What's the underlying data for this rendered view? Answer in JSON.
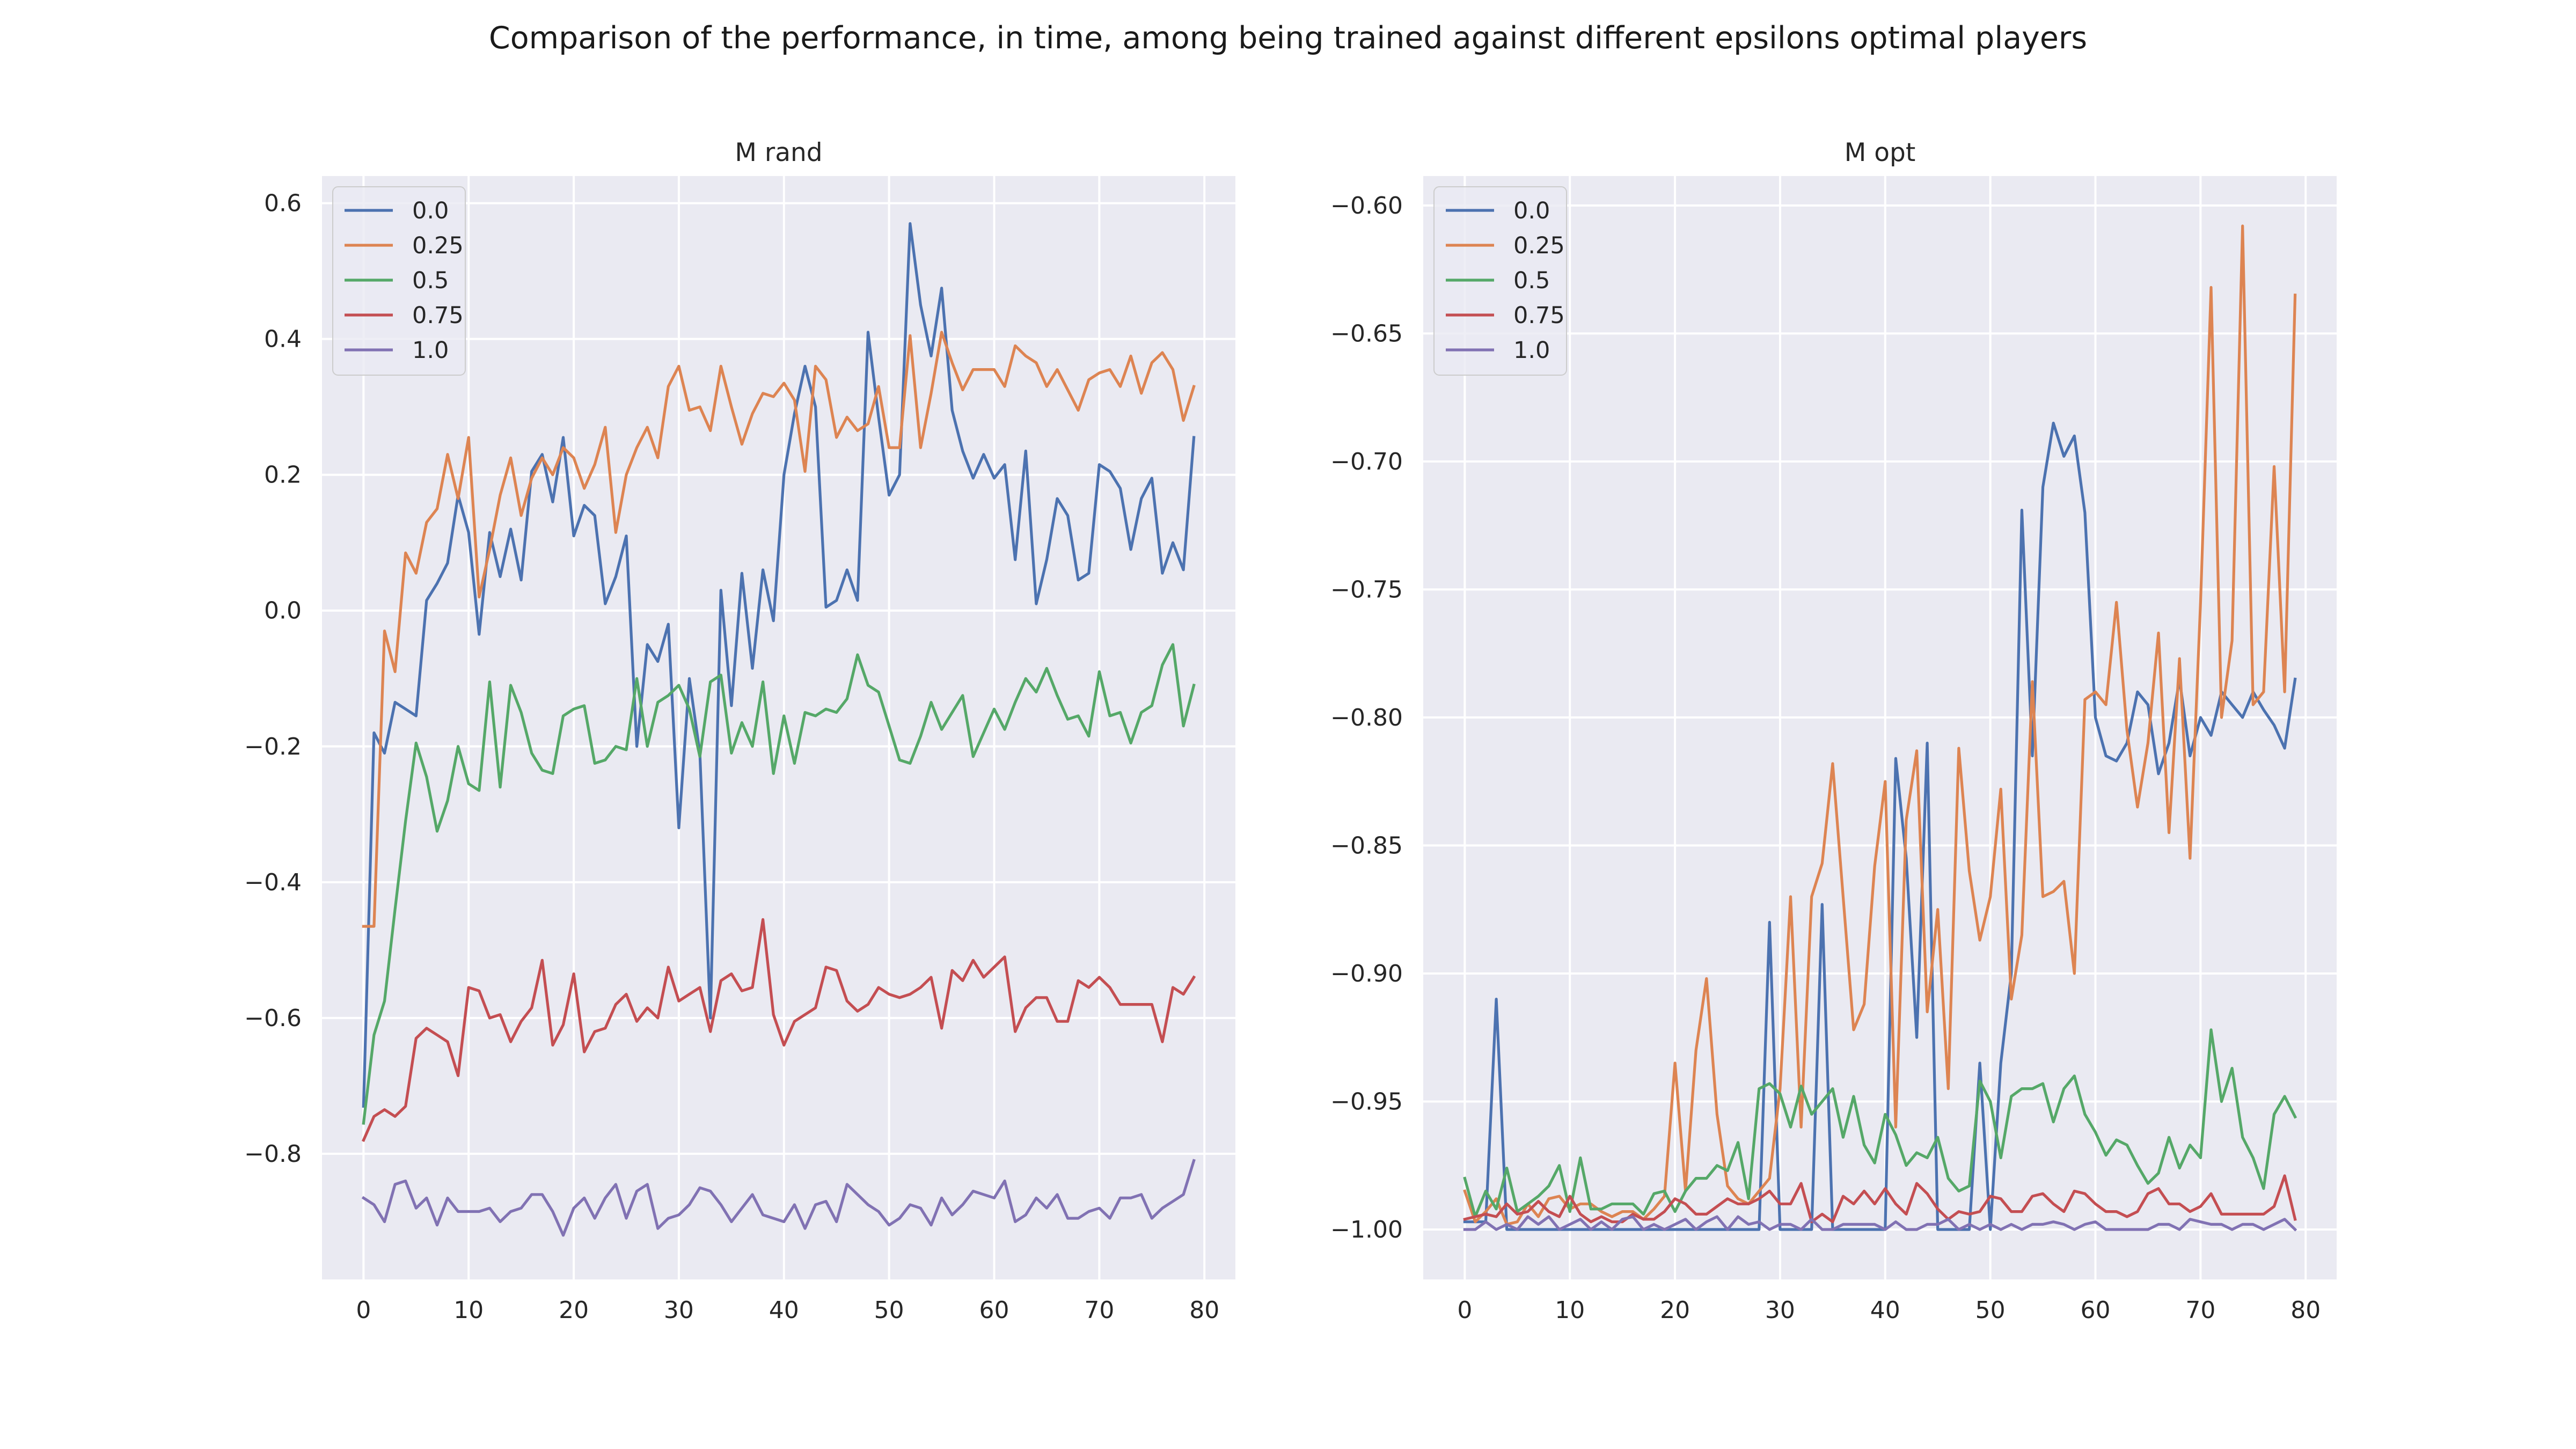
{
  "suptitle": "Comparison of the performance, in time, among being trained against different epsilons optimal players",
  "chart_data": [
    {
      "type": "line",
      "title": "M rand",
      "xlabel": "",
      "ylabel": "",
      "xlim": [
        -3.95,
        82.95
      ],
      "ylim": [
        -0.985,
        0.64
      ],
      "xticks": [
        0,
        10,
        20,
        30,
        40,
        50,
        60,
        70,
        80
      ],
      "yticks": [
        -0.8,
        -0.6,
        -0.4,
        -0.2,
        0.0,
        0.2,
        0.4,
        0.6
      ],
      "ytick_labels": [
        "−0.8",
        "−0.6",
        "−0.4",
        "−0.2",
        "0.0",
        "0.2",
        "0.4",
        "0.6"
      ],
      "grid": true,
      "legend": "top-left",
      "colors": [
        "#4c72b0",
        "#dd8452",
        "#55a868",
        "#c44e52",
        "#8172b3"
      ],
      "series": [
        {
          "name": "0.0",
          "values": [
            -0.73,
            -0.18,
            -0.21,
            -0.135,
            -0.145,
            -0.155,
            0.015,
            0.04,
            0.07,
            0.17,
            0.115,
            -0.035,
            0.115,
            0.05,
            0.12,
            0.045,
            0.205,
            0.23,
            0.16,
            0.255,
            0.11,
            0.155,
            0.14,
            0.01,
            0.05,
            0.11,
            -0.2,
            -0.05,
            -0.075,
            -0.02,
            -0.32,
            -0.1,
            -0.21,
            -0.6,
            0.03,
            -0.14,
            0.055,
            -0.085,
            0.06,
            -0.015,
            0.2,
            0.29,
            0.36,
            0.3,
            0.005,
            0.015,
            0.06,
            0.015,
            0.41,
            0.285,
            0.17,
            0.2,
            0.57,
            0.45,
            0.375,
            0.475,
            0.295,
            0.235,
            0.195,
            0.23,
            0.195,
            0.215,
            0.075,
            0.235,
            0.01,
            0.075,
            0.165,
            0.14,
            0.045,
            0.055,
            0.215,
            0.205,
            0.18,
            0.09,
            0.165,
            0.195,
            0.055,
            0.1,
            0.06,
            0.255
          ]
        },
        {
          "name": "0.25",
          "values": [
            -0.465,
            -0.465,
            -0.03,
            -0.09,
            0.085,
            0.055,
            0.13,
            0.15,
            0.23,
            0.165,
            0.255,
            0.02,
            0.09,
            0.17,
            0.225,
            0.14,
            0.195,
            0.225,
            0.2,
            0.24,
            0.225,
            0.18,
            0.215,
            0.27,
            0.115,
            0.2,
            0.24,
            0.27,
            0.225,
            0.33,
            0.36,
            0.295,
            0.3,
            0.265,
            0.36,
            0.3,
            0.245,
            0.29,
            0.32,
            0.315,
            0.335,
            0.31,
            0.205,
            0.36,
            0.34,
            0.255,
            0.285,
            0.265,
            0.275,
            0.33,
            0.24,
            0.24,
            0.405,
            0.24,
            0.32,
            0.41,
            0.365,
            0.325,
            0.355,
            0.355,
            0.355,
            0.33,
            0.39,
            0.375,
            0.365,
            0.33,
            0.355,
            0.325,
            0.295,
            0.34,
            0.35,
            0.355,
            0.33,
            0.375,
            0.32,
            0.365,
            0.38,
            0.355,
            0.28,
            0.33
          ]
        },
        {
          "name": "0.5",
          "values": [
            -0.755,
            -0.625,
            -0.575,
            -0.44,
            -0.31,
            -0.195,
            -0.245,
            -0.325,
            -0.28,
            -0.2,
            -0.255,
            -0.265,
            -0.105,
            -0.26,
            -0.11,
            -0.15,
            -0.21,
            -0.235,
            -0.24,
            -0.155,
            -0.145,
            -0.14,
            -0.225,
            -0.22,
            -0.2,
            -0.205,
            -0.1,
            -0.2,
            -0.135,
            -0.125,
            -0.11,
            -0.145,
            -0.215,
            -0.105,
            -0.095,
            -0.21,
            -0.165,
            -0.2,
            -0.105,
            -0.24,
            -0.155,
            -0.225,
            -0.15,
            -0.155,
            -0.145,
            -0.15,
            -0.13,
            -0.065,
            -0.11,
            -0.12,
            -0.17,
            -0.22,
            -0.225,
            -0.185,
            -0.135,
            -0.175,
            -0.15,
            -0.125,
            -0.215,
            -0.18,
            -0.145,
            -0.175,
            -0.135,
            -0.1,
            -0.12,
            -0.085,
            -0.125,
            -0.16,
            -0.155,
            -0.185,
            -0.09,
            -0.155,
            -0.15,
            -0.195,
            -0.15,
            -0.14,
            -0.08,
            -0.05,
            -0.17,
            -0.11
          ]
        },
        {
          "name": "0.75",
          "values": [
            -0.78,
            -0.745,
            -0.735,
            -0.745,
            -0.73,
            -0.63,
            -0.615,
            -0.625,
            -0.635,
            -0.685,
            -0.555,
            -0.56,
            -0.6,
            -0.595,
            -0.635,
            -0.605,
            -0.585,
            -0.515,
            -0.64,
            -0.61,
            -0.535,
            -0.65,
            -0.62,
            -0.615,
            -0.58,
            -0.565,
            -0.605,
            -0.585,
            -0.6,
            -0.525,
            -0.575,
            -0.565,
            -0.555,
            -0.62,
            -0.545,
            -0.535,
            -0.56,
            -0.555,
            -0.455,
            -0.595,
            -0.64,
            -0.605,
            -0.595,
            -0.585,
            -0.525,
            -0.53,
            -0.575,
            -0.59,
            -0.58,
            -0.555,
            -0.565,
            -0.57,
            -0.565,
            -0.555,
            -0.54,
            -0.615,
            -0.53,
            -0.545,
            -0.515,
            -0.54,
            -0.525,
            -0.51,
            -0.62,
            -0.585,
            -0.57,
            -0.57,
            -0.605,
            -0.605,
            -0.545,
            -0.555,
            -0.54,
            -0.555,
            -0.58,
            -0.58,
            -0.58,
            -0.58,
            -0.635,
            -0.555,
            -0.565,
            -0.54
          ]
        },
        {
          "name": "1.0",
          "values": [
            -0.865,
            -0.875,
            -0.9,
            -0.845,
            -0.84,
            -0.88,
            -0.865,
            -0.905,
            -0.865,
            -0.885,
            -0.885,
            -0.885,
            -0.88,
            -0.9,
            -0.885,
            -0.88,
            -0.86,
            -0.86,
            -0.885,
            -0.92,
            -0.88,
            -0.865,
            -0.895,
            -0.865,
            -0.845,
            -0.895,
            -0.855,
            -0.845,
            -0.91,
            -0.895,
            -0.89,
            -0.875,
            -0.85,
            -0.855,
            -0.875,
            -0.9,
            -0.88,
            -0.86,
            -0.89,
            -0.895,
            -0.9,
            -0.875,
            -0.91,
            -0.875,
            -0.87,
            -0.9,
            -0.845,
            -0.86,
            -0.875,
            -0.885,
            -0.905,
            -0.895,
            -0.875,
            -0.88,
            -0.905,
            -0.865,
            -0.89,
            -0.875,
            -0.855,
            -0.86,
            -0.865,
            -0.84,
            -0.9,
            -0.89,
            -0.865,
            -0.88,
            -0.86,
            -0.895,
            -0.895,
            -0.885,
            -0.88,
            -0.895,
            -0.865,
            -0.865,
            -0.86,
            -0.895,
            -0.88,
            -0.87,
            -0.86,
            -0.81
          ]
        }
      ]
    },
    {
      "type": "line",
      "title": "M opt",
      "xlabel": "",
      "ylabel": "",
      "xlim": [
        -3.95,
        82.95
      ],
      "ylim": [
        -1.0195,
        -0.5885
      ],
      "xticks": [
        0,
        10,
        20,
        30,
        40,
        50,
        60,
        70,
        80
      ],
      "yticks": [
        -1.0,
        -0.95,
        -0.9,
        -0.85,
        -0.8,
        -0.75,
        -0.7,
        -0.65,
        -0.6
      ],
      "ytick_labels": [
        "−1.00",
        "−0.95",
        "−0.90",
        "−0.85",
        "−0.80",
        "−0.75",
        "−0.70",
        "−0.65",
        "−0.60"
      ],
      "grid": true,
      "legend": "top-left",
      "colors": [
        "#4c72b0",
        "#dd8452",
        "#55a868",
        "#c44e52",
        "#8172b3"
      ],
      "series": [
        {
          "name": "0.0",
          "values": [
            -0.997,
            -0.997,
            -0.997,
            -0.91,
            -1.0,
            -1.0,
            -1.0,
            -1.0,
            -1.0,
            -1.0,
            -1.0,
            -1.0,
            -1.0,
            -1.0,
            -1.0,
            -1.0,
            -1.0,
            -1.0,
            -1.0,
            -1.0,
            -1.0,
            -1.0,
            -1.0,
            -1.0,
            -1.0,
            -1.0,
            -1.0,
            -1.0,
            -1.0,
            -0.88,
            -1.0,
            -1.0,
            -1.0,
            -1.0,
            -0.873,
            -1.0,
            -1.0,
            -1.0,
            -1.0,
            -1.0,
            -1.0,
            -0.816,
            -0.855,
            -0.925,
            -0.81,
            -1.0,
            -1.0,
            -1.0,
            -1.0,
            -0.935,
            -1.0,
            -0.935,
            -0.9,
            -0.719,
            -0.815,
            -0.71,
            -0.685,
            -0.698,
            -0.69,
            -0.72,
            -0.8,
            -0.815,
            -0.817,
            -0.81,
            -0.79,
            -0.795,
            -0.822,
            -0.81,
            -0.785,
            -0.815,
            -0.8,
            -0.807,
            -0.79,
            -0.795,
            -0.8,
            -0.79,
            -0.797,
            -0.803,
            -0.812,
            -0.785
          ]
        },
        {
          "name": "0.25",
          "values": [
            -0.985,
            -0.997,
            -0.993,
            -0.988,
            -0.998,
            -0.997,
            -0.99,
            -0.995,
            -0.988,
            -0.987,
            -0.992,
            -0.99,
            -0.99,
            -0.993,
            -0.995,
            -0.993,
            -0.993,
            -0.996,
            -0.992,
            -0.987,
            -0.935,
            -0.985,
            -0.93,
            -0.902,
            -0.955,
            -0.983,
            -0.988,
            -0.99,
            -0.985,
            -0.98,
            -0.945,
            -0.87,
            -0.96,
            -0.87,
            -0.857,
            -0.818,
            -0.87,
            -0.922,
            -0.912,
            -0.858,
            -0.825,
            -0.96,
            -0.84,
            -0.813,
            -0.915,
            -0.875,
            -0.945,
            -0.812,
            -0.86,
            -0.887,
            -0.87,
            -0.828,
            -0.91,
            -0.885,
            -0.786,
            -0.87,
            -0.868,
            -0.864,
            -0.9,
            -0.793,
            -0.79,
            -0.795,
            -0.755,
            -0.805,
            -0.835,
            -0.81,
            -0.767,
            -0.845,
            -0.777,
            -0.855,
            -0.755,
            -0.632,
            -0.8,
            -0.77,
            -0.608,
            -0.795,
            -0.79,
            -0.702,
            -0.79,
            -0.635
          ]
        },
        {
          "name": "0.5",
          "values": [
            -0.98,
            -0.995,
            -0.985,
            -0.992,
            -0.976,
            -0.993,
            -0.99,
            -0.987,
            -0.983,
            -0.975,
            -0.993,
            -0.972,
            -0.992,
            -0.992,
            -0.99,
            -0.99,
            -0.99,
            -0.994,
            -0.986,
            -0.985,
            -0.993,
            -0.985,
            -0.98,
            -0.98,
            -0.975,
            -0.977,
            -0.966,
            -0.988,
            -0.945,
            -0.943,
            -0.947,
            -0.96,
            -0.944,
            -0.955,
            -0.95,
            -0.945,
            -0.964,
            -0.948,
            -0.967,
            -0.974,
            -0.955,
            -0.963,
            -0.975,
            -0.97,
            -0.972,
            -0.964,
            -0.98,
            -0.985,
            -0.983,
            -0.942,
            -0.95,
            -0.972,
            -0.948,
            -0.945,
            -0.945,
            -0.943,
            -0.958,
            -0.945,
            -0.94,
            -0.955,
            -0.962,
            -0.971,
            -0.965,
            -0.967,
            -0.975,
            -0.982,
            -0.978,
            -0.964,
            -0.976,
            -0.967,
            -0.972,
            -0.922,
            -0.95,
            -0.937,
            -0.964,
            -0.972,
            -0.984,
            -0.955,
            -0.948,
            -0.956
          ]
        },
        {
          "name": "0.75",
          "values": [
            -0.996,
            -0.995,
            -0.994,
            -0.995,
            -0.99,
            -0.994,
            -0.993,
            -0.989,
            -0.993,
            -0.995,
            -0.987,
            -0.994,
            -0.997,
            -0.995,
            -0.997,
            -0.997,
            -0.994,
            -0.996,
            -0.996,
            -0.993,
            -0.988,
            -0.99,
            -0.994,
            -0.994,
            -0.991,
            -0.988,
            -0.99,
            -0.99,
            -0.988,
            -0.985,
            -0.99,
            -0.99,
            -0.982,
            -0.997,
            -0.994,
            -0.997,
            -0.987,
            -0.99,
            -0.985,
            -0.99,
            -0.984,
            -0.99,
            -0.994,
            -0.982,
            -0.986,
            -0.992,
            -0.996,
            -0.993,
            -0.994,
            -0.993,
            -0.987,
            -0.988,
            -0.993,
            -0.993,
            -0.987,
            -0.986,
            -0.99,
            -0.993,
            -0.985,
            -0.986,
            -0.99,
            -0.993,
            -0.993,
            -0.995,
            -0.993,
            -0.986,
            -0.984,
            -0.99,
            -0.99,
            -0.993,
            -0.991,
            -0.986,
            -0.994,
            -0.994,
            -0.994,
            -0.994,
            -0.994,
            -0.991,
            -0.979,
            -0.996
          ]
        },
        {
          "name": "1.0",
          "values": [
            -1.0,
            -1.0,
            -0.997,
            -1.0,
            -0.998,
            -1.0,
            -0.995,
            -0.998,
            -0.995,
            -1.0,
            -0.998,
            -0.996,
            -1.0,
            -0.997,
            -1.0,
            -0.996,
            -0.995,
            -1.0,
            -0.998,
            -1.0,
            -0.998,
            -0.996,
            -1.0,
            -0.997,
            -0.995,
            -1.0,
            -0.995,
            -0.998,
            -0.997,
            -1.0,
            -0.998,
            -0.998,
            -1.0,
            -0.996,
            -1.0,
            -1.0,
            -0.998,
            -0.998,
            -0.998,
            -0.998,
            -1.0,
            -0.997,
            -1.0,
            -1.0,
            -0.998,
            -0.998,
            -0.996,
            -1.0,
            -0.998,
            -1.0,
            -0.998,
            -1.0,
            -0.998,
            -1.0,
            -0.998,
            -0.998,
            -0.997,
            -0.998,
            -1.0,
            -0.998,
            -0.997,
            -1.0,
            -1.0,
            -1.0,
            -1.0,
            -1.0,
            -0.998,
            -0.998,
            -1.0,
            -0.996,
            -0.997,
            -0.998,
            -0.998,
            -1.0,
            -0.998,
            -0.998,
            -1.0,
            -0.998,
            -0.996,
            -1.0
          ]
        }
      ]
    }
  ]
}
